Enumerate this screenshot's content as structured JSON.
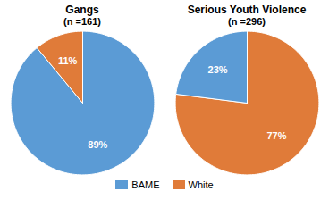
{
  "chart_data": [
    {
      "type": "pie",
      "title": "Gangs",
      "subtitle": "(n =161)",
      "categories": [
        "BAME",
        "White"
      ],
      "values": [
        89,
        11
      ],
      "value_labels": [
        "89%",
        "11%"
      ],
      "colors": [
        "#5B9BD5",
        "#E07B39"
      ],
      "data_labels": true,
      "legend": "bottom"
    },
    {
      "type": "pie",
      "title": "Serious Youth Violence",
      "subtitle": "(n =296)",
      "categories": [
        "White",
        "BAME"
      ],
      "values": [
        77,
        23
      ],
      "value_labels": [
        "77%",
        "23%"
      ],
      "colors": [
        "#E07B39",
        "#5B9BD5"
      ],
      "data_labels": true,
      "legend": "bottom"
    }
  ]
}
